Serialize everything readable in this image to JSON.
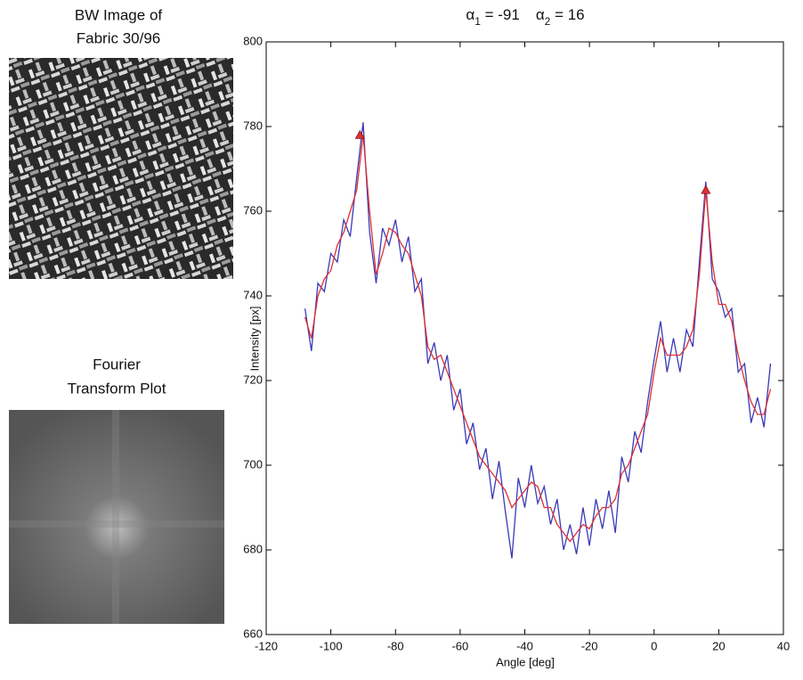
{
  "panels": [
    {
      "title_lines": [
        "BW Image of",
        "Fabric 30/96"
      ]
    },
    {
      "title_lines": [
        "Fourier",
        "Transform Plot"
      ]
    }
  ],
  "chart_data": {
    "type": "line",
    "title_parts": [
      {
        "text": "α",
        "sub": "1",
        "rest": " = -91"
      },
      {
        "text": "α",
        "sub": "2",
        "rest": " = 16"
      }
    ],
    "xlabel": "Angle [deg]",
    "ylabel": "Intensity [px]",
    "xlim": [
      -120,
      40
    ],
    "xticks": [
      -120,
      -100,
      -80,
      -60,
      -40,
      -20,
      0,
      20,
      40
    ],
    "ylim": [
      660,
      800
    ],
    "yticks": [
      660,
      680,
      700,
      720,
      740,
      760,
      780,
      800
    ],
    "x": [
      -108,
      -106,
      -104,
      -102,
      -100,
      -98,
      -96,
      -94,
      -92,
      -90,
      -88,
      -86,
      -84,
      -82,
      -80,
      -78,
      -76,
      -74,
      -72,
      -70,
      -68,
      -66,
      -64,
      -62,
      -60,
      -58,
      -56,
      -54,
      -52,
      -50,
      -48,
      -46,
      -44,
      -42,
      -40,
      -38,
      -36,
      -34,
      -32,
      -30,
      -28,
      -26,
      -24,
      -22,
      -20,
      -18,
      -16,
      -14,
      -12,
      -10,
      -8,
      -6,
      -4,
      -2,
      0,
      2,
      4,
      6,
      8,
      10,
      12,
      14,
      16,
      18,
      20,
      22,
      24,
      26,
      28,
      30,
      32,
      34,
      36
    ],
    "series": [
      {
        "color": "#3a3ab8",
        "values": [
          737,
          727,
          743,
          741,
          750,
          748,
          758,
          754,
          768,
          781,
          755,
          743,
          756,
          752,
          758,
          748,
          754,
          741,
          744,
          724,
          729,
          720,
          726,
          713,
          718,
          705,
          710,
          699,
          704,
          692,
          701,
          689,
          678,
          697,
          690,
          700,
          691,
          695,
          686,
          692,
          680,
          686,
          679,
          690,
          681,
          692,
          685,
          694,
          684,
          702,
          696,
          708,
          703,
          715,
          725,
          734,
          722,
          730,
          722,
          732,
          728,
          748,
          767,
          744,
          741,
          735,
          737,
          722,
          724,
          710,
          716,
          709,
          724
        ]
      },
      {
        "color": "#e03030",
        "values": [
          735,
          730,
          740,
          744,
          746,
          752,
          755,
          760,
          765,
          778,
          760,
          745,
          750,
          756,
          755,
          752,
          750,
          745,
          740,
          728,
          725,
          726,
          722,
          718,
          714,
          710,
          706,
          702,
          700,
          698,
          696,
          694,
          690,
          692,
          694,
          696,
          695,
          690,
          690,
          686,
          684,
          682,
          684,
          686,
          685,
          688,
          690,
          690,
          692,
          698,
          700,
          704,
          708,
          712,
          722,
          730,
          726,
          726,
          726,
          728,
          732,
          745,
          765,
          748,
          738,
          738,
          734,
          726,
          720,
          715,
          712,
          712,
          718
        ]
      }
    ],
    "peaks": {
      "color": "#e03030",
      "x": [
        -91,
        16
      ],
      "y": [
        778,
        765
      ]
    },
    "grid": false
  }
}
